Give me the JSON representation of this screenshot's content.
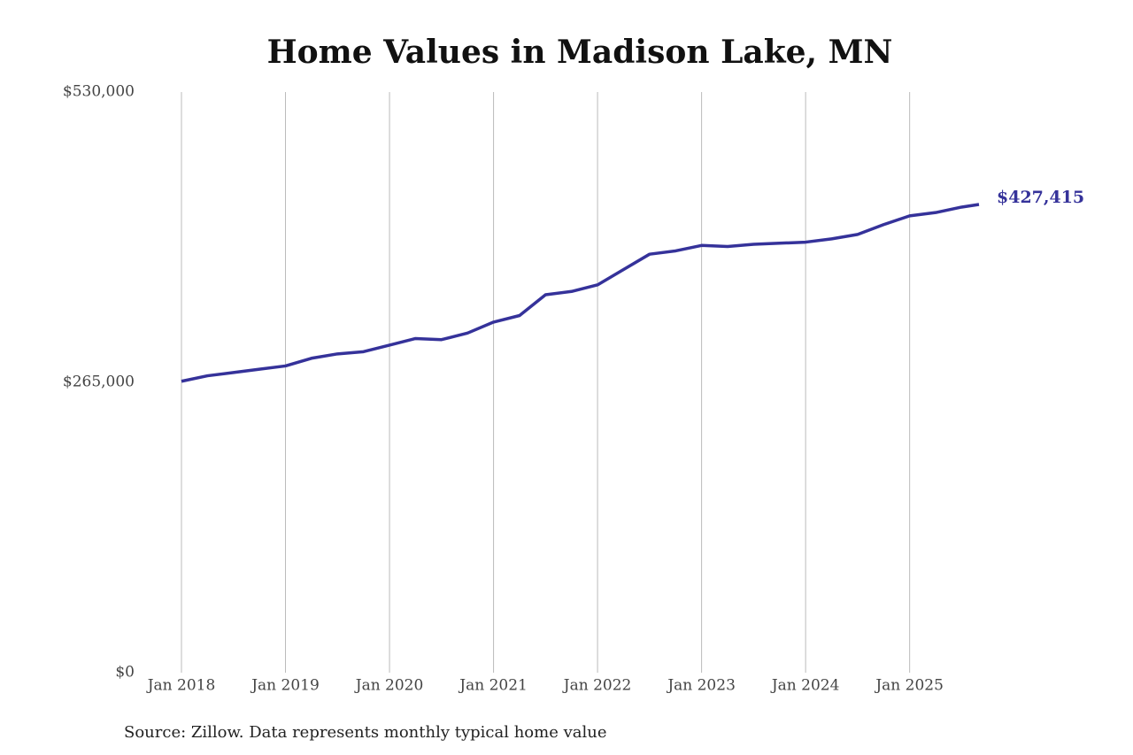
{
  "chart_data": {
    "type": "line",
    "title": "Home Values in Madison Lake, MN",
    "source": "Source: Zillow. Data represents monthly typical home value",
    "x": [
      "2018-01",
      "2018-04",
      "2018-07",
      "2018-10",
      "2019-01",
      "2019-04",
      "2019-07",
      "2019-10",
      "2020-01",
      "2020-04",
      "2020-07",
      "2020-10",
      "2021-01",
      "2021-04",
      "2021-07",
      "2021-10",
      "2022-01",
      "2022-04",
      "2022-07",
      "2022-10",
      "2023-01",
      "2023-04",
      "2023-07",
      "2023-10",
      "2024-01",
      "2024-04",
      "2024-07",
      "2024-10",
      "2025-01",
      "2025-04",
      "2025-07",
      "2025-09"
    ],
    "series": [
      {
        "name": "Typical home value",
        "color": "#35329a",
        "values": [
          266000,
          271000,
          274000,
          277000,
          280000,
          287000,
          291000,
          293000,
          299000,
          305000,
          304000,
          310000,
          320000,
          326000,
          345000,
          348000,
          354000,
          368000,
          382000,
          385000,
          390000,
          389000,
          391000,
          392000,
          393000,
          396000,
          400000,
          409000,
          417000,
          420000,
          425000,
          427415
        ],
        "value_labels": [
          null,
          null,
          null,
          null,
          null,
          null,
          null,
          null,
          null,
          null,
          null,
          null,
          null,
          null,
          null,
          null,
          null,
          null,
          null,
          null,
          null,
          null,
          null,
          null,
          null,
          null,
          null,
          null,
          null,
          null,
          null,
          "$427,415"
        ]
      }
    ],
    "xlim": [
      "2018-01",
      "2025-09"
    ],
    "xticks": [
      {
        "value": "2018-01",
        "label": "Jan 2018"
      },
      {
        "value": "2019-01",
        "label": "Jan 2019"
      },
      {
        "value": "2020-01",
        "label": "Jan 2020"
      },
      {
        "value": "2021-01",
        "label": "Jan 2021"
      },
      {
        "value": "2022-01",
        "label": "Jan 2022"
      },
      {
        "value": "2023-01",
        "label": "Jan 2023"
      },
      {
        "value": "2024-01",
        "label": "Jan 2024"
      },
      {
        "value": "2025-01",
        "label": "Jan 2025"
      }
    ],
    "ylim": [
      0,
      530000
    ],
    "yticks": [
      {
        "value": 0,
        "label": "$0"
      },
      {
        "value": 265000,
        "label": "$265,000"
      },
      {
        "value": 530000,
        "label": "$530,000"
      }
    ],
    "grid": "x"
  }
}
